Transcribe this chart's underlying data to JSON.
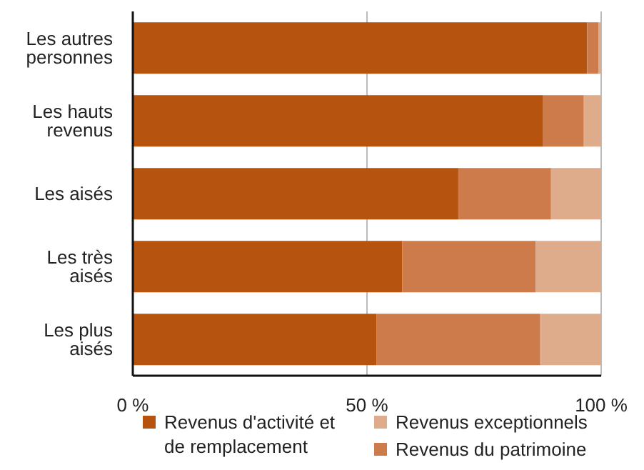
{
  "chart_data": {
    "type": "bar",
    "orientation": "horizontal",
    "stacked": true,
    "categories": [
      "Les autres personnes",
      "Les hauts revenus",
      "Les aisés",
      "Les très aisés",
      "Les plus aisés"
    ],
    "series": [
      {
        "name": "Revenus d'activité et de remplacement",
        "color": "#b5530f",
        "values": [
          97,
          87.5,
          69.5,
          57.5,
          52
        ]
      },
      {
        "name": "Revenus du patrimoine",
        "color": "#cd7b4a",
        "values": [
          2.4,
          8.8,
          19.8,
          28.5,
          35
        ]
      },
      {
        "name": "Revenus exceptionnels",
        "color": "#deac8a",
        "values": [
          0.6,
          3.7,
          10.7,
          14,
          13
        ]
      }
    ],
    "xlim": [
      0,
      100
    ],
    "xticks": [
      {
        "value": 0,
        "label": "0 %"
      },
      {
        "value": 50,
        "label": "50 %"
      },
      {
        "value": 100,
        "label": "100 %"
      }
    ],
    "grid": "x",
    "legend": "bottom"
  }
}
